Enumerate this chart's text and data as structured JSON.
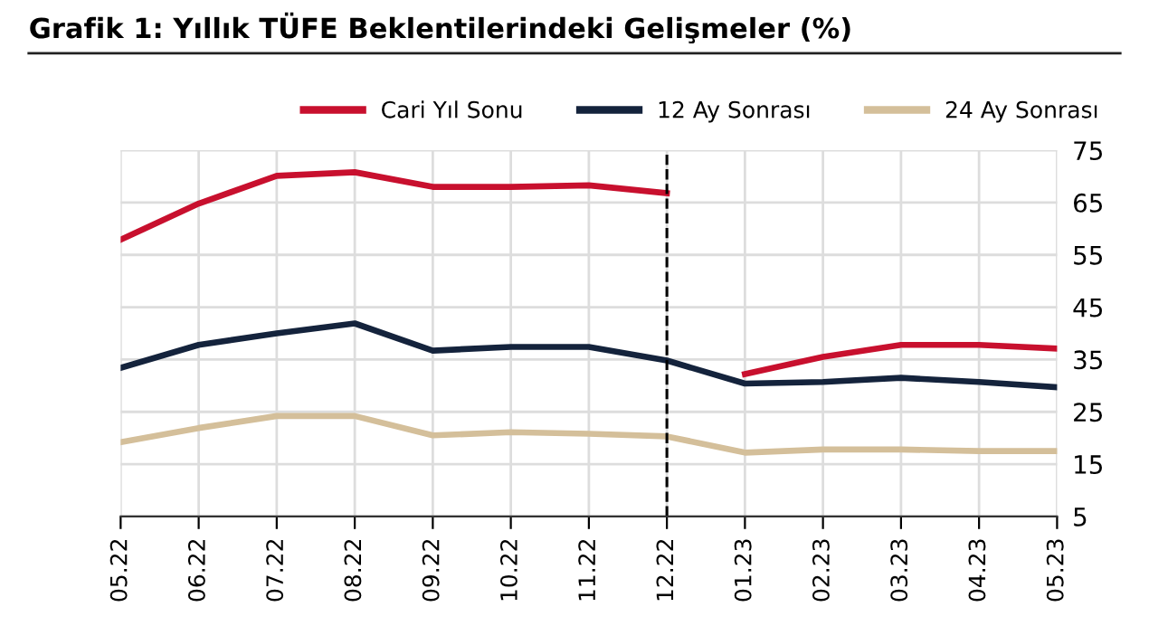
{
  "chart_data": {
    "type": "line",
    "title": "Grafik 1: Yıllık TÜFE Beklentilerindeki Gelişmeler (%)",
    "categories": [
      "05.22",
      "06.22",
      "07.22",
      "08.22",
      "09.22",
      "10.22",
      "11.22",
      "12.22",
      "01.23",
      "02.23",
      "03.23",
      "04.23",
      "05.23"
    ],
    "series": [
      {
        "name": "Cari Yıl Sonu",
        "color": "#c8102e",
        "values": [
          57.9,
          64.8,
          70.1,
          70.8,
          68.0,
          68.0,
          68.3,
          66.8,
          null,
          null,
          null,
          null,
          null
        ]
      },
      {
        "color": "#c8102e",
        "values": [
          null,
          null,
          null,
          null,
          null,
          null,
          null,
          null,
          32.2,
          35.5,
          37.8,
          37.8,
          37.1
        ]
      },
      {
        "name": "12 Ay Sonrası",
        "color": "#14233c",
        "values": [
          33.4,
          37.8,
          40.0,
          41.9,
          36.7,
          37.4,
          37.4,
          34.8,
          30.4,
          30.7,
          31.5,
          30.7,
          29.7
        ]
      },
      {
        "name": "24 Ay Sonrası",
        "color": "#d4bf9a",
        "values": [
          19.2,
          21.9,
          24.2,
          24.2,
          20.5,
          21.1,
          20.8,
          20.3,
          17.2,
          17.8,
          17.8,
          17.5,
          17.5
        ]
      }
    ],
    "ylim": [
      5,
      75
    ],
    "yticks": [
      5,
      15,
      25,
      35,
      45,
      55,
      65,
      75
    ],
    "grid": true,
    "legend": "top",
    "line_style": "solid",
    "marker": "none",
    "ref_lines": [
      {
        "axis": "x",
        "value": "12.22",
        "color": "#000000",
        "line_style": "dashed"
      }
    ]
  }
}
